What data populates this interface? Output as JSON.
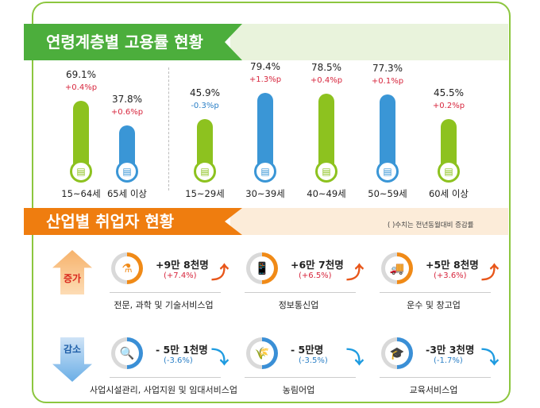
{
  "chart_data": {
    "type": "bar",
    "title": "연령계층별 고용률 현황",
    "categories": [
      "15~64세",
      "65세 이상",
      "15~29세",
      "30~39세",
      "40~49세",
      "50~59세",
      "60세 이상"
    ],
    "values": [
      69.1,
      37.8,
      45.9,
      79.4,
      78.5,
      77.3,
      45.5
    ],
    "value_labels": [
      "69.1%",
      "37.8%",
      "45.9%",
      "79.4%",
      "78.5%",
      "77.3%",
      "45.5%"
    ],
    "changes": [
      "+0.4%p",
      "+0.6%p",
      "-0.3%p",
      "+1.3%p",
      "+0.4%p",
      "+0.1%p",
      "+0.2%p"
    ],
    "bar_colors": [
      "#8dc21f",
      "#3a96d6",
      "#8dc21f",
      "#3a96d6",
      "#8dc21f",
      "#3a96d6",
      "#8dc21f"
    ]
  },
  "industry": {
    "title": "산업별 취업자 현황",
    "note": "( )수치는 전년동월대비 증감률",
    "increase_label": "증가",
    "decrease_label": "감소",
    "increase": [
      {
        "name": "전문, 과학 및 기술서비스업",
        "count": "+9만 8천명",
        "pct": "(+7.4%)",
        "icon": "lab-flask-icon"
      },
      {
        "name": "정보통신업",
        "count": "+6만 7천명",
        "pct": "(+6.5%)",
        "icon": "phone-icon"
      },
      {
        "name": "운수 및 창고업",
        "count": "+5만 8천명",
        "pct": "(+3.6%)",
        "icon": "truck-icon"
      }
    ],
    "decrease": [
      {
        "name": "사업시설관리, 사업지원 및 임대서비스업",
        "count": "- 5만 1천명",
        "pct": "(-3.6%)",
        "icon": "tools-search-icon"
      },
      {
        "name": "농림어업",
        "count": "- 5만명",
        "pct": "(-3.5%)",
        "icon": "wheat-icon"
      },
      {
        "name": "교육서비스업",
        "count": "-3만 3천명",
        "pct": "(-1.7%)",
        "icon": "graduation-cap-icon"
      }
    ]
  },
  "colors": {
    "green": "#4cae3c",
    "orange": "#ef7d0f",
    "inc_text": "#d7263d",
    "dec_text": "#2a7fc6",
    "ring_inc": "#f08a17",
    "ring_dec": "#3a8fd6"
  }
}
